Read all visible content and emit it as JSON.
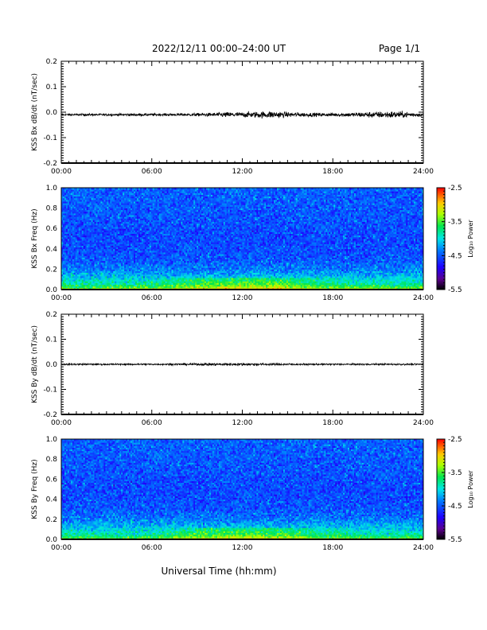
{
  "header": {
    "title": "2022/12/11  00:00–24:00 UT",
    "page": "Page 1/1"
  },
  "footer": {
    "xlabel": "Universal Time (hh:mm)"
  },
  "chart_data": [
    {
      "type": "line",
      "ylabel": "KSS Bx dB/dt (nT/sec)",
      "x_ticks": [
        "00:00",
        "06:00",
        "12:00",
        "18:00",
        "24:00"
      ],
      "y_ticks": [
        "0.2",
        "0.1",
        "0.0",
        "-0.1",
        "-0.2"
      ],
      "y_tick_values": [
        0.2,
        0.1,
        0.0,
        -0.1,
        -0.2
      ],
      "xlim": [
        0,
        24
      ],
      "ylim": [
        -0.2,
        0.2
      ],
      "series": [
        {
          "x": [
            0,
            1,
            2,
            3,
            4,
            5,
            6,
            7,
            8,
            9,
            10,
            11,
            12,
            13,
            14,
            15,
            16,
            17,
            18,
            19,
            20,
            21,
            22,
            23,
            24
          ],
          "y": [
            -0.01,
            -0.01,
            -0.01,
            -0.01,
            -0.01,
            -0.01,
            -0.01,
            -0.01,
            -0.01,
            -0.01,
            -0.01,
            -0.01,
            -0.01,
            -0.01,
            -0.01,
            -0.01,
            -0.01,
            -0.01,
            -0.01,
            -0.01,
            -0.01,
            -0.01,
            -0.01,
            -0.01,
            -0.01
          ],
          "amplitude": [
            0.004,
            0.004,
            0.004,
            0.004,
            0.004,
            0.005,
            0.005,
            0.005,
            0.005,
            0.006,
            0.007,
            0.01,
            0.01,
            0.012,
            0.014,
            0.01,
            0.008,
            0.007,
            0.007,
            0.008,
            0.01,
            0.012,
            0.014,
            0.01,
            0.006
          ]
        }
      ]
    },
    {
      "type": "heatmap",
      "ylabel": "KSS Bx Freq (Hz)",
      "x_ticks": [
        "00:00",
        "06:00",
        "12:00",
        "18:00",
        "24:00"
      ],
      "y_ticks": [
        "1.0",
        "0.8",
        "0.6",
        "0.4",
        "0.2",
        "0.0"
      ],
      "y_tick_values": [
        1.0,
        0.8,
        0.6,
        0.4,
        0.2,
        0.0
      ],
      "xlim": [
        0,
        24
      ],
      "ylim": [
        0,
        1.0
      ],
      "colorbar": {
        "label": "Log₁₀ Power",
        "ticks": [
          "-2.5",
          "-3.5",
          "-4.5",
          "-5.5"
        ],
        "tick_values": [
          -2.5,
          -3.5,
          -4.5,
          -5.5
        ],
        "range": [
          -5.5,
          -2.5
        ]
      },
      "power_profile": {
        "freq": [
          0.0,
          0.02,
          0.05,
          0.1,
          0.15,
          0.2,
          0.3,
          0.5,
          0.7,
          1.0
        ],
        "log_power": [
          -3.2,
          -3.5,
          -3.8,
          -4.0,
          -4.2,
          -4.35,
          -4.5,
          -4.55,
          -4.5,
          -4.45
        ]
      }
    },
    {
      "type": "line",
      "ylabel": "KSS By dB/dt (nT/sec)",
      "x_ticks": [
        "00:00",
        "06:00",
        "12:00",
        "18:00",
        "24:00"
      ],
      "y_ticks": [
        "0.2",
        "0.1",
        "0.0",
        "-0.1",
        "-0.2"
      ],
      "y_tick_values": [
        0.2,
        0.1,
        0.0,
        -0.1,
        -0.2
      ],
      "xlim": [
        0,
        24
      ],
      "ylim": [
        -0.2,
        0.2
      ],
      "series": [
        {
          "x": [
            0,
            1,
            2,
            3,
            4,
            5,
            6,
            7,
            8,
            9,
            10,
            11,
            12,
            13,
            14,
            15,
            16,
            17,
            18,
            19,
            20,
            21,
            22,
            23,
            24
          ],
          "y": [
            0.0,
            0.0,
            0.0,
            0.0,
            0.0,
            0.0,
            0.0,
            0.0,
            0.0,
            0.0,
            0.0,
            0.0,
            0.0,
            0.0,
            0.0,
            0.0,
            0.0,
            0.0,
            0.0,
            0.0,
            0.0,
            0.0,
            0.0,
            0.0,
            0.0
          ],
          "amplitude": [
            0.003,
            0.003,
            0.003,
            0.003,
            0.003,
            0.003,
            0.003,
            0.003,
            0.004,
            0.004,
            0.005,
            0.005,
            0.005,
            0.005,
            0.004,
            0.004,
            0.003,
            0.003,
            0.003,
            0.003,
            0.003,
            0.003,
            0.003,
            0.003,
            0.003
          ]
        }
      ]
    },
    {
      "type": "heatmap",
      "ylabel": "KSS By Freq (Hz)",
      "x_ticks": [
        "00:00",
        "06:00",
        "12:00",
        "18:00",
        "24:00"
      ],
      "y_ticks": [
        "1.0",
        "0.8",
        "0.6",
        "0.4",
        "0.2",
        "0.0"
      ],
      "y_tick_values": [
        1.0,
        0.8,
        0.6,
        0.4,
        0.2,
        0.0
      ],
      "xlim": [
        0,
        24
      ],
      "ylim": [
        0,
        1.0
      ],
      "colorbar": {
        "label": "Log₁₀ Power",
        "ticks": [
          "-2.5",
          "-3.5",
          "-4.5",
          "-5.5"
        ],
        "tick_values": [
          -2.5,
          -3.5,
          -4.5,
          -5.5
        ],
        "range": [
          -5.5,
          -2.5
        ]
      },
      "power_profile": {
        "freq": [
          0.0,
          0.02,
          0.05,
          0.1,
          0.15,
          0.2,
          0.3,
          0.5,
          0.7,
          1.0
        ],
        "log_power": [
          -3.3,
          -3.6,
          -3.85,
          -4.05,
          -4.2,
          -4.35,
          -4.5,
          -4.55,
          -4.5,
          -4.45
        ]
      }
    }
  ]
}
